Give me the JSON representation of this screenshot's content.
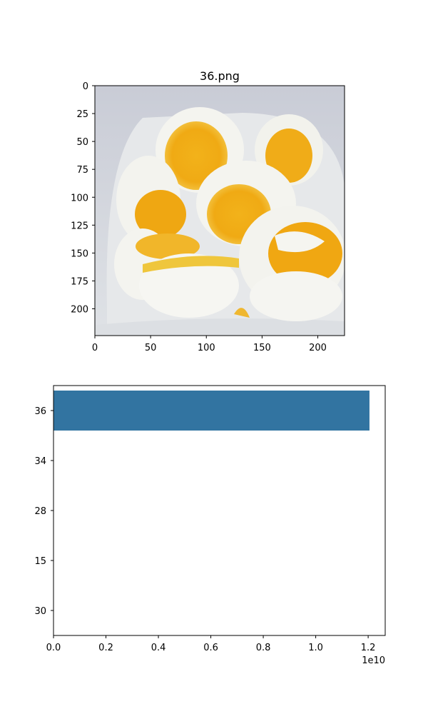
{
  "chart_data": [
    {
      "type": "image",
      "title": "36.png",
      "xlim": [
        0,
        224
      ],
      "ylim": [
        224,
        0
      ],
      "x_ticks": [
        "0",
        "50",
        "100",
        "150",
        "200"
      ],
      "x_tick_values": [
        0,
        50,
        100,
        150,
        200
      ],
      "y_ticks": [
        "0",
        "25",
        "50",
        "75",
        "100",
        "125",
        "150",
        "175",
        "200"
      ],
      "y_tick_values": [
        0,
        25,
        50,
        75,
        100,
        125,
        150,
        175,
        200
      ]
    },
    {
      "type": "bar",
      "orientation": "horizontal",
      "categories": [
        "36",
        "34",
        "28",
        "15",
        "30"
      ],
      "values": [
        12050000000,
        0,
        0,
        0,
        0
      ],
      "xlim": [
        0,
        12650000000
      ],
      "x_ticks": [
        "0.0",
        "0.2",
        "0.4",
        "0.6",
        "0.8",
        "1.0",
        "1.2"
      ],
      "x_tick_values": [
        0,
        2000000000,
        4000000000,
        6000000000,
        8000000000,
        10000000000,
        12000000000
      ],
      "x_offset_label": "1e10",
      "bar_color": "#3274a1"
    }
  ]
}
